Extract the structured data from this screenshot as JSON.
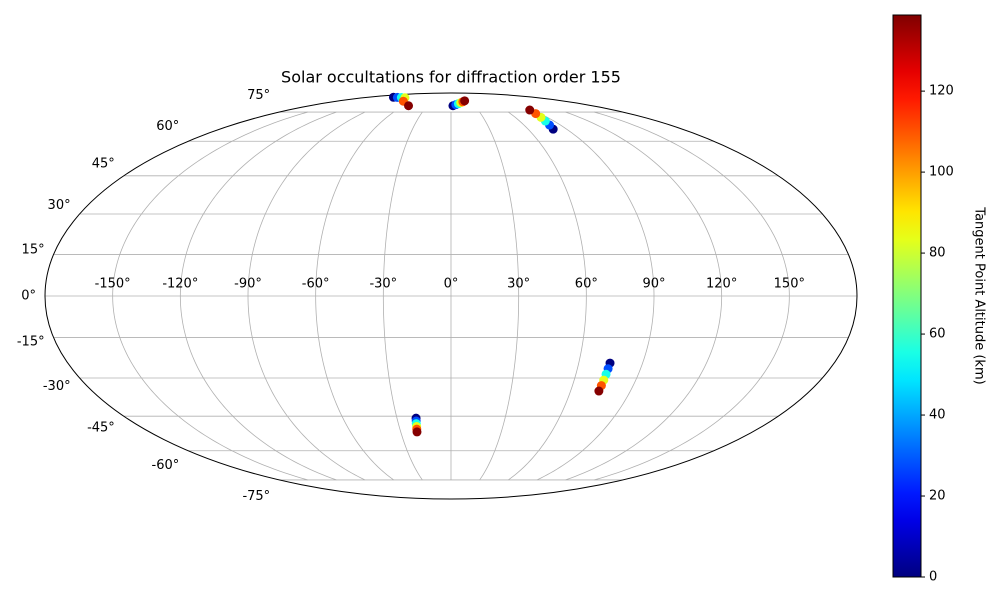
{
  "chart_data": {
    "type": "scatter",
    "projection": "mollweide",
    "title": "Solar occultations for diffraction order 155",
    "x": [
      2.5,
      6.4,
      10.3,
      14.2,
      18.1,
      22,
      79.5,
      81,
      82.5,
      84,
      85.5,
      87,
      -125,
      -115,
      -105,
      -95,
      -75,
      -54,
      74.7,
      74.6,
      74.5,
      74.4,
      74.3,
      74.2,
      -19.4,
      -19.6,
      -19.8,
      -19.9,
      -20.1,
      -20.3
    ],
    "y": [
      78.9,
      79.6,
      80.3,
      81.0,
      81.6,
      82.3,
      65.8,
      67.9,
      70,
      72,
      74.1,
      76.2,
      85.1,
      85,
      84.9,
      84.7,
      82,
      78.9,
      -24.4,
      -26.5,
      -28.6,
      -30.8,
      -32.9,
      -35,
      -45.8,
      -47,
      -48.1,
      -49.3,
      -50.4,
      -51.6
    ],
    "values": [
      0,
      28,
      55,
      83,
      110,
      138,
      0,
      28,
      55,
      83,
      110,
      138,
      0,
      28,
      55,
      83,
      110,
      138,
      0,
      28,
      55,
      83,
      110,
      138,
      0,
      28,
      55,
      83,
      110,
      138
    ],
    "xticks": [
      {
        "value": -150,
        "label": "-150°"
      },
      {
        "value": -120,
        "label": "-120°"
      },
      {
        "value": -90,
        "label": "-90°"
      },
      {
        "value": -60,
        "label": "-60°"
      },
      {
        "value": -30,
        "label": "-30°"
      },
      {
        "value": 0,
        "label": "0°"
      },
      {
        "value": 30,
        "label": "30°"
      },
      {
        "value": 60,
        "label": "60°"
      },
      {
        "value": 90,
        "label": "90°"
      },
      {
        "value": 120,
        "label": "120°"
      },
      {
        "value": 150,
        "label": "150°"
      }
    ],
    "yticks": [
      {
        "value": -75,
        "label": "-75°"
      },
      {
        "value": -60,
        "label": "-60°"
      },
      {
        "value": -45,
        "label": "-45°"
      },
      {
        "value": -30,
        "label": "-30°"
      },
      {
        "value": -15,
        "label": "-15°"
      },
      {
        "value": 0,
        "label": "0°"
      },
      {
        "value": 15,
        "label": "15°"
      },
      {
        "value": 30,
        "label": "30°"
      },
      {
        "value": 45,
        "label": "45°"
      },
      {
        "value": 60,
        "label": "60°"
      },
      {
        "value": 75,
        "label": "75°"
      }
    ],
    "grid": true,
    "colorbar": {
      "label": "Tangent Point Altitude (km)",
      "colormap": "jet",
      "lim": [
        0,
        138.8
      ],
      "ticks": [
        0,
        20,
        40,
        60,
        80,
        100,
        120
      ]
    }
  }
}
